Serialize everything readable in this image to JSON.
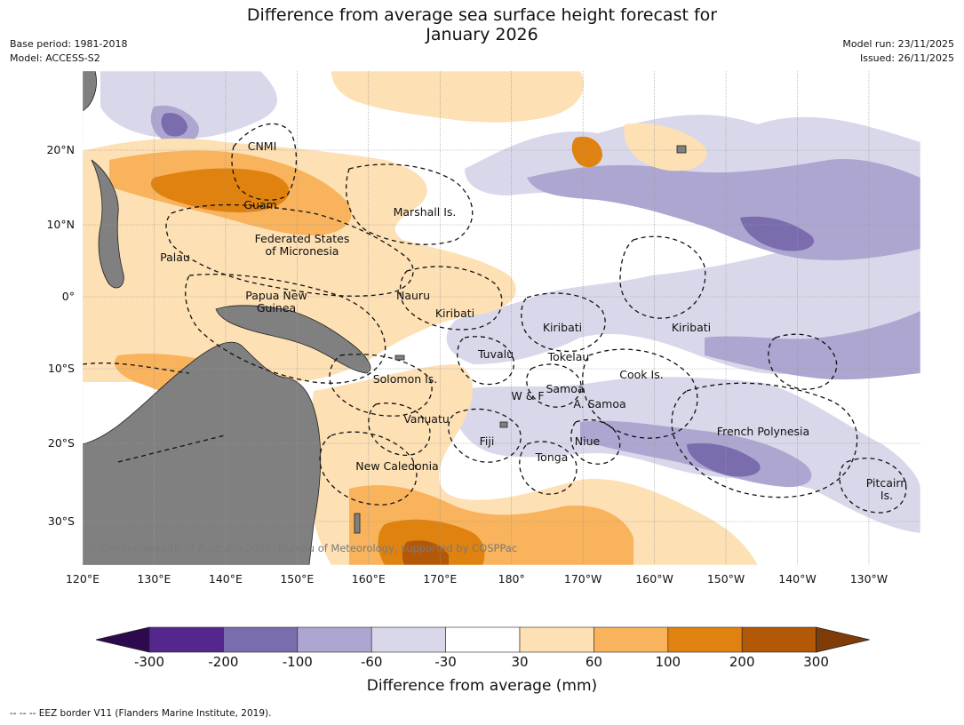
{
  "title_line1": "Difference from average sea surface height forecast for",
  "title_line2": "January 2026",
  "meta_left": {
    "base_period": "Base period: 1981-2018",
    "model": "Model: ACCESS-S2"
  },
  "meta_right": {
    "model_run": "Model run: 23/11/2025",
    "issued": "Issued: 26/11/2025"
  },
  "lat_ticks": [
    "20°N",
    "10°N",
    "0°",
    "10°S",
    "20°S",
    "30°S"
  ],
  "lon_ticks": [
    "120°E",
    "130°E",
    "140°E",
    "150°E",
    "160°E",
    "170°E",
    "180°",
    "170°W",
    "160°W",
    "150°W",
    "140°W",
    "130°W"
  ],
  "places": {
    "cnmi": "CNMI",
    "guam": "Guam",
    "marshall": "Marshall Is.",
    "fsm": "Federated States\nof Micronesia",
    "palau": "Palau",
    "png": "Papua New\nGuinea",
    "nauru": "Nauru",
    "kiribati_w": "Kiribati",
    "kiribati_c": "Kiribati",
    "kiribati_e": "Kiribati",
    "tuvalu": "Tuvalu",
    "tokelau": "Tokelau",
    "cook": "Cook Is.",
    "solomon": "Solomon Is.",
    "samoa": "Samoa",
    "wf": "W & F",
    "asamoa": "A. Samoa",
    "vanuatu": "Vanuatu",
    "fiji": "Fiji",
    "niue": "Niue",
    "tonga": "Tonga",
    "new_caledonia": "New Caledonia",
    "french_polynesia": "French Polynesia",
    "pitcairn": "Pitcairn\nIs."
  },
  "copyright": "© Commonwealth of Australia 2025, Bureau of Meteorology, supported by COSPPac",
  "colorbar": {
    "ticks": [
      "-300",
      "-200",
      "-100",
      "-60",
      "-30",
      "30",
      "60",
      "100",
      "200",
      "300"
    ],
    "colors": [
      "#2d0a4e",
      "#54278f",
      "#7b6cae",
      "#ada6d0",
      "#d8d8ea",
      "#ffffff",
      "#fde0b4",
      "#f8b35c",
      "#e0820f",
      "#b35806",
      "#7f3b08"
    ],
    "title": "Difference from average (mm)"
  },
  "footer": "--  --  -- EEZ border V11 (Flanders Marine Institute, 2019).",
  "palette": {
    "land": "#808080",
    "neg60": "#d8d8ea",
    "neg100": "#ada6d0",
    "neg200": "#7b6cae",
    "pos30": "#fde0b4",
    "pos60": "#f8b35c",
    "pos100": "#e0820f",
    "pos200": "#b35806"
  }
}
